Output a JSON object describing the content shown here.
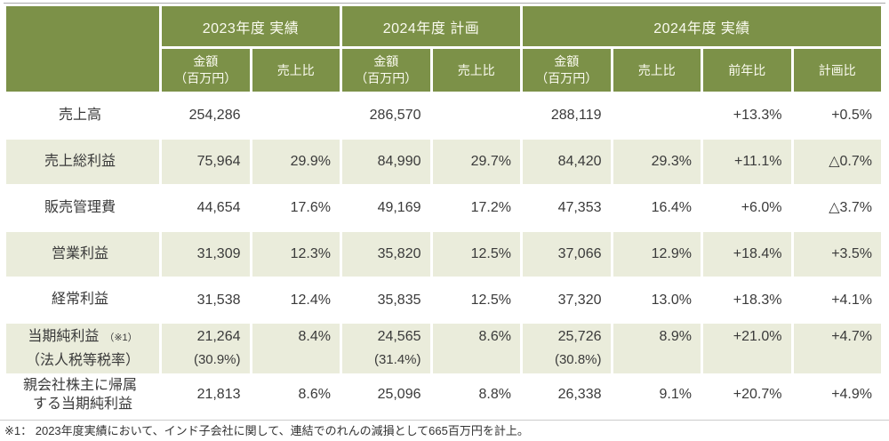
{
  "colors": {
    "header_green": "#7c9148",
    "row_alt_beige": "#eaecdb",
    "header_text": "#fbfbf0",
    "body_text": "#3a3a3a"
  },
  "table": {
    "groups": [
      {
        "label": "2023年度 実績"
      },
      {
        "label": "2024年度 計画"
      },
      {
        "label": "2024年度 実績"
      }
    ],
    "subheaders": [
      {
        "line1": "金額",
        "line2": "（百万円）"
      },
      {
        "line1": "売上比",
        "line2": ""
      },
      {
        "line1": "金額",
        "line2": "（百万円）"
      },
      {
        "line1": "売上比",
        "line2": ""
      },
      {
        "line1": "金額",
        "line2": "（百万円）"
      },
      {
        "line1": "売上比",
        "line2": ""
      },
      {
        "line1": "前年比",
        "line2": ""
      },
      {
        "line1": "計画比",
        "line2": ""
      }
    ],
    "rows": [
      {
        "label": {
          "line1": "売上高",
          "note": "",
          "line2": ""
        },
        "cells": [
          {
            "main": "254,286",
            "sub": ""
          },
          {
            "main": "",
            "sub": ""
          },
          {
            "main": "286,570",
            "sub": ""
          },
          {
            "main": "",
            "sub": ""
          },
          {
            "main": "288,119",
            "sub": ""
          },
          {
            "main": "",
            "sub": ""
          },
          {
            "main": "+13.3%",
            "sub": ""
          },
          {
            "main": "+0.5%",
            "sub": ""
          }
        ]
      },
      {
        "label": {
          "line1": "売上総利益",
          "note": "",
          "line2": ""
        },
        "cells": [
          {
            "main": "75,964",
            "sub": ""
          },
          {
            "main": "29.9%",
            "sub": ""
          },
          {
            "main": "84,990",
            "sub": ""
          },
          {
            "main": "29.7%",
            "sub": ""
          },
          {
            "main": "84,420",
            "sub": ""
          },
          {
            "main": "29.3%",
            "sub": ""
          },
          {
            "main": "+11.1%",
            "sub": ""
          },
          {
            "main": "△0.7%",
            "sub": ""
          }
        ]
      },
      {
        "label": {
          "line1": "販売管理費",
          "note": "",
          "line2": ""
        },
        "cells": [
          {
            "main": "44,654",
            "sub": ""
          },
          {
            "main": "17.6%",
            "sub": ""
          },
          {
            "main": "49,169",
            "sub": ""
          },
          {
            "main": "17.2%",
            "sub": ""
          },
          {
            "main": "47,353",
            "sub": ""
          },
          {
            "main": "16.4%",
            "sub": ""
          },
          {
            "main": "+6.0%",
            "sub": ""
          },
          {
            "main": "△3.7%",
            "sub": ""
          }
        ]
      },
      {
        "label": {
          "line1": "営業利益",
          "note": "",
          "line2": ""
        },
        "cells": [
          {
            "main": "31,309",
            "sub": ""
          },
          {
            "main": "12.3%",
            "sub": ""
          },
          {
            "main": "35,820",
            "sub": ""
          },
          {
            "main": "12.5%",
            "sub": ""
          },
          {
            "main": "37,066",
            "sub": ""
          },
          {
            "main": "12.9%",
            "sub": ""
          },
          {
            "main": "+18.4%",
            "sub": ""
          },
          {
            "main": "+3.5%",
            "sub": ""
          }
        ]
      },
      {
        "label": {
          "line1": "経常利益",
          "note": "",
          "line2": ""
        },
        "cells": [
          {
            "main": "31,538",
            "sub": ""
          },
          {
            "main": "12.4%",
            "sub": ""
          },
          {
            "main": "35,835",
            "sub": ""
          },
          {
            "main": "12.5%",
            "sub": ""
          },
          {
            "main": "37,320",
            "sub": ""
          },
          {
            "main": "13.0%",
            "sub": ""
          },
          {
            "main": "+18.3%",
            "sub": ""
          },
          {
            "main": "+4.1%",
            "sub": ""
          }
        ]
      },
      {
        "label": {
          "line1": "当期純利益",
          "note": "（※1）",
          "line2": "（法人税等税率）"
        },
        "cells": [
          {
            "main": "21,264",
            "sub": "(30.9%)"
          },
          {
            "main": "8.4%",
            "sub": ""
          },
          {
            "main": "24,565",
            "sub": "(31.4%)"
          },
          {
            "main": "8.6%",
            "sub": ""
          },
          {
            "main": "25,726",
            "sub": "(30.8%)"
          },
          {
            "main": "8.9%",
            "sub": ""
          },
          {
            "main": "+21.0%",
            "sub": ""
          },
          {
            "main": "+4.7%",
            "sub": ""
          }
        ]
      },
      {
        "label": {
          "line1": "親会社株主に帰属",
          "note": "",
          "line2": "する当期純利益"
        },
        "cells": [
          {
            "main": "21,813",
            "sub": ""
          },
          {
            "main": "8.6%",
            "sub": ""
          },
          {
            "main": "25,096",
            "sub": ""
          },
          {
            "main": "8.8%",
            "sub": ""
          },
          {
            "main": "26,338",
            "sub": ""
          },
          {
            "main": "9.1%",
            "sub": ""
          },
          {
            "main": "+20.7%",
            "sub": ""
          },
          {
            "main": "+4.9%",
            "sub": ""
          }
        ]
      }
    ]
  },
  "footnote": "※1： 2023年度実績において、インド子会社に関して、連結でのれんの減損として665百万円を計上。"
}
